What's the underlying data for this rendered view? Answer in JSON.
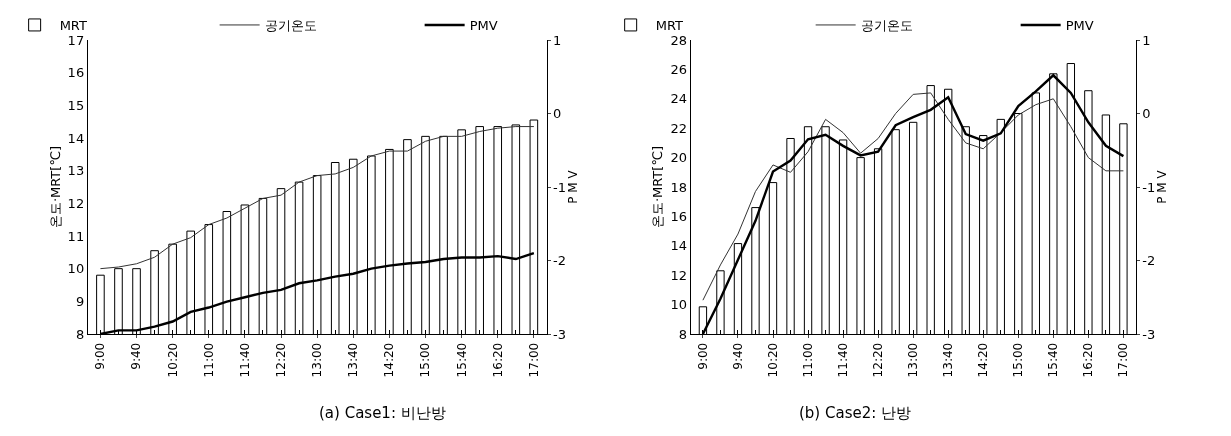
{
  "chart_data": [
    {
      "type": "bar",
      "categories": [
        "9:00",
        null,
        "9:40",
        null,
        "10:20",
        null,
        "11:00",
        null,
        "11:40",
        null,
        "12:20",
        null,
        "13:00",
        null,
        "13:40",
        null,
        "14:20",
        null,
        "15:00",
        null,
        "15:40",
        null,
        "16:20",
        null,
        "17:00"
      ],
      "series": [
        {
          "name": "MRT",
          "color": "#ffffff",
          "values": [
            9.8,
            10.0,
            10.0,
            10.55,
            10.75,
            11.15,
            11.35,
            11.75,
            11.95,
            12.15,
            12.45,
            12.65,
            12.85,
            13.25,
            13.35,
            13.45,
            13.65,
            13.95,
            14.05,
            14.05,
            14.25,
            14.35,
            14.35,
            14.4,
            14.55
          ]
        },
        {
          "name": "공기온도",
          "type": "line",
          "color": "#333333",
          "values": [
            10.0,
            10.05,
            10.15,
            10.35,
            10.75,
            10.95,
            11.35,
            11.55,
            11.85,
            12.15,
            12.25,
            12.65,
            12.85,
            12.9,
            13.1,
            13.45,
            13.6,
            13.6,
            13.9,
            14.05,
            14.05,
            14.2,
            14.3,
            14.35,
            14.35
          ]
        },
        {
          "name": "PMV",
          "type": "line",
          "axis": "y2",
          "color": "#000000",
          "values": [
            -3.0,
            -2.95,
            -2.95,
            -2.9,
            -2.83,
            -2.7,
            -2.64,
            -2.56,
            -2.5,
            -2.44,
            -2.4,
            -2.31,
            -2.27,
            -2.22,
            -2.18,
            -2.11,
            -2.07,
            -2.04,
            -2.02,
            -1.98,
            -1.96,
            -1.96,
            -1.94,
            -1.98,
            -1.9
          ]
        }
      ],
      "ylabel": "온도·MRT[℃]",
      "y2label": "P M V",
      "ylim": [
        8,
        17
      ],
      "yticks": [
        8,
        9,
        10,
        11,
        12,
        13,
        14,
        15,
        16,
        17
      ],
      "y2lim": [
        -3,
        1
      ],
      "y2ticks": [
        -3,
        -2,
        -1,
        0,
        1
      ],
      "legend": "top",
      "line_style": "solid",
      "annotations": [
        "(a) Case1: 비난방"
      ]
    },
    {
      "type": "bar",
      "categories": [
        "9:00",
        null,
        "9:40",
        null,
        "10:20",
        null,
        "11:00",
        null,
        "11:40",
        null,
        "12:20",
        null,
        "13:00",
        null,
        "13:40",
        null,
        "14:20",
        null,
        "15:00",
        null,
        "15:40",
        null,
        "16:20",
        null,
        "17:00"
      ],
      "series": [
        {
          "name": "MRT",
          "color": "#ffffff",
          "values": [
            9.85,
            12.3,
            14.15,
            16.6,
            18.3,
            21.3,
            22.1,
            22.1,
            21.2,
            20.0,
            20.6,
            21.9,
            22.4,
            24.9,
            24.65,
            22.1,
            21.5,
            22.6,
            23.0,
            24.4,
            25.7,
            26.4,
            24.55,
            22.9,
            22.3
          ]
        },
        {
          "name": "공기온도",
          "type": "line",
          "color": "#333333",
          "values": [
            10.3,
            12.7,
            14.8,
            17.7,
            19.5,
            19.0,
            20.4,
            22.6,
            21.7,
            20.3,
            21.3,
            23.0,
            24.3,
            24.4,
            22.6,
            21.0,
            20.6,
            21.7,
            22.9,
            23.6,
            24.0,
            22.1,
            20.0,
            19.1,
            19.1
          ]
        },
        {
          "name": "PMV",
          "type": "line",
          "axis": "y2",
          "color": "#000000",
          "values": [
            -3.0,
            -2.52,
            -1.99,
            -1.46,
            -0.79,
            -0.64,
            -0.35,
            -0.29,
            -0.44,
            -0.57,
            -0.52,
            -0.16,
            -0.05,
            0.05,
            0.22,
            -0.28,
            -0.37,
            -0.27,
            0.1,
            0.3,
            0.52,
            0.28,
            -0.12,
            -0.44,
            -0.58
          ]
        }
      ],
      "ylabel": "온도·MRT[℃]",
      "y2label": "P M V",
      "ylim": [
        8,
        28
      ],
      "yticks": [
        8,
        10,
        12,
        14,
        16,
        18,
        20,
        22,
        24,
        26,
        28
      ],
      "y2lim": [
        -3,
        1
      ],
      "y2ticks": [
        -3,
        -2,
        -1,
        0,
        1
      ],
      "legend": "top",
      "line_style": "solid",
      "annotations": [
        "(b) Case2: 난방"
      ]
    }
  ]
}
